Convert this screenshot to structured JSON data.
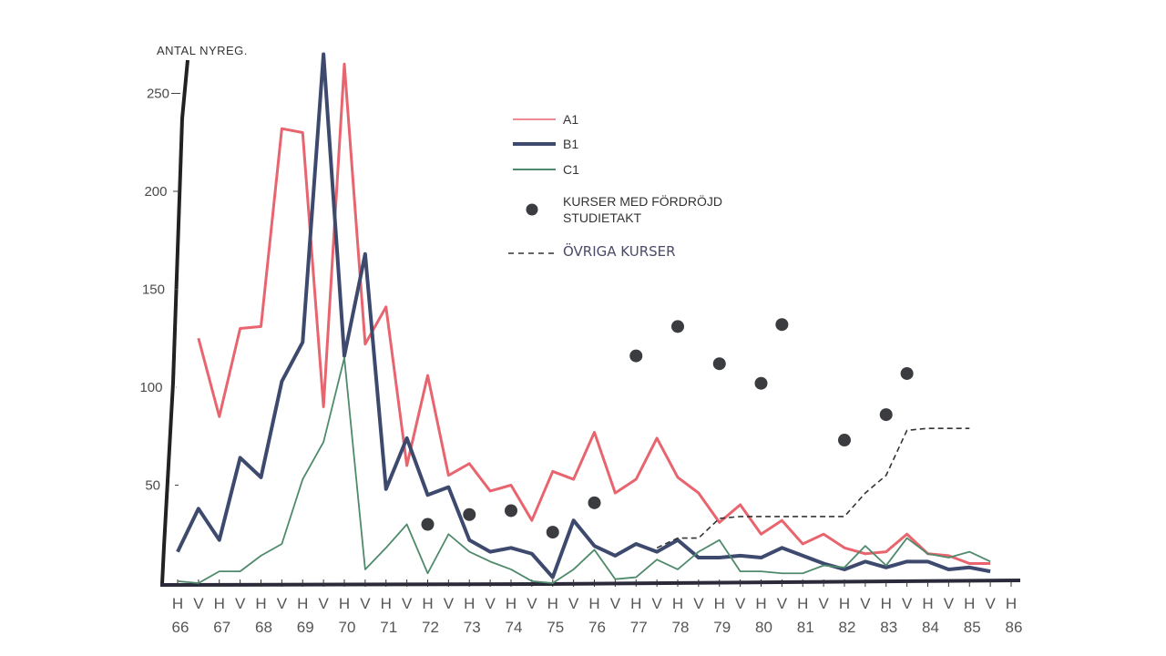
{
  "chart_data": {
    "type": "line",
    "ylabel": "ANTAL NYREG.",
    "xlabel": "",
    "ylim": [
      0,
      270
    ],
    "yticks": [
      50,
      100,
      150,
      200,
      250
    ],
    "semesters": [
      "H",
      "V",
      "H",
      "V",
      "H",
      "V",
      "H",
      "V",
      "H",
      "V",
      "H",
      "V",
      "H",
      "V",
      "H",
      "V",
      "H",
      "V",
      "H",
      "V",
      "H",
      "V",
      "H",
      "V",
      "H",
      "V",
      "H",
      "V",
      "H",
      "V",
      "H",
      "V",
      "H",
      "V",
      "H",
      "V",
      "H",
      "V",
      "H",
      "V",
      "H"
    ],
    "years": [
      "66",
      "67",
      "68",
      "69",
      "70",
      "71",
      "72",
      "73",
      "74",
      "75",
      "76",
      "77",
      "78",
      "79",
      "80",
      "81",
      "82",
      "83",
      "84",
      "85",
      "86"
    ],
    "grid": false,
    "legend_placement": "top-center",
    "legend": {
      "a1": "A1",
      "b1": "B1",
      "c1": "C1",
      "dots_line1": "KURSER MED FÖRDRÖJD",
      "dots_line2": "STUDIETAKT",
      "ovriga": "ÖVRIGA KURSER"
    },
    "series": [
      {
        "name": "A1",
        "color": "#e8646e",
        "points": [
          [
            1,
            125
          ],
          [
            2,
            85
          ],
          [
            3,
            130
          ],
          [
            4,
            131
          ],
          [
            5,
            232
          ],
          [
            6,
            230
          ],
          [
            7,
            90
          ],
          [
            8,
            265
          ],
          [
            9,
            122
          ],
          [
            10,
            141
          ],
          [
            11,
            60
          ],
          [
            12,
            106
          ],
          [
            13,
            55
          ],
          [
            14,
            61
          ],
          [
            15,
            47
          ],
          [
            16,
            50
          ],
          [
            17,
            32
          ],
          [
            18,
            57
          ],
          [
            19,
            53
          ],
          [
            20,
            77
          ],
          [
            21,
            46
          ],
          [
            22,
            53
          ],
          [
            23,
            74
          ],
          [
            24,
            54
          ],
          [
            25,
            46
          ],
          [
            26,
            31
          ],
          [
            27,
            40
          ],
          [
            28,
            25
          ],
          [
            29,
            32
          ],
          [
            30,
            20
          ],
          [
            31,
            25
          ],
          [
            32,
            18
          ],
          [
            33,
            15
          ],
          [
            34,
            16
          ],
          [
            35,
            25
          ],
          [
            36,
            15
          ],
          [
            37,
            14
          ],
          [
            38,
            10
          ],
          [
            39,
            10
          ]
        ]
      },
      {
        "name": "B1",
        "color": "#3d4a6e",
        "points": [
          [
            0,
            16
          ],
          [
            1,
            38
          ],
          [
            2,
            22
          ],
          [
            3,
            64
          ],
          [
            4,
            54
          ],
          [
            5,
            103
          ],
          [
            6,
            123
          ],
          [
            7,
            270
          ],
          [
            8,
            116
          ],
          [
            9,
            168
          ],
          [
            10,
            48
          ],
          [
            11,
            74
          ],
          [
            12,
            45
          ],
          [
            13,
            49
          ],
          [
            14,
            22
          ],
          [
            15,
            16
          ],
          [
            16,
            18
          ],
          [
            17,
            15
          ],
          [
            18,
            3
          ],
          [
            19,
            32
          ],
          [
            20,
            19
          ],
          [
            21,
            14
          ],
          [
            22,
            20
          ],
          [
            23,
            16
          ],
          [
            24,
            22
          ],
          [
            25,
            13
          ],
          [
            26,
            13
          ],
          [
            27,
            14
          ],
          [
            28,
            13
          ],
          [
            29,
            18
          ],
          [
            30,
            14
          ],
          [
            31,
            10
          ],
          [
            32,
            7
          ],
          [
            33,
            11
          ],
          [
            34,
            8
          ],
          [
            35,
            11
          ],
          [
            36,
            11
          ],
          [
            37,
            7
          ],
          [
            38,
            8
          ],
          [
            39,
            6
          ]
        ]
      },
      {
        "name": "C1",
        "color": "#4f8a6c",
        "points": [
          [
            0,
            1
          ],
          [
            1,
            0
          ],
          [
            2,
            6
          ],
          [
            3,
            6
          ],
          [
            4,
            14
          ],
          [
            5,
            20
          ],
          [
            6,
            53
          ],
          [
            7,
            72
          ],
          [
            8,
            115
          ],
          [
            9,
            7
          ],
          [
            10,
            18
          ],
          [
            11,
            30
          ],
          [
            12,
            5
          ],
          [
            13,
            25
          ],
          [
            14,
            16
          ],
          [
            15,
            11
          ],
          [
            16,
            7
          ],
          [
            17,
            1
          ],
          [
            18,
            0
          ],
          [
            19,
            7
          ],
          [
            20,
            17
          ],
          [
            21,
            2
          ],
          [
            22,
            3
          ],
          [
            23,
            12
          ],
          [
            24,
            7
          ],
          [
            25,
            16
          ],
          [
            26,
            22
          ],
          [
            27,
            6
          ],
          [
            28,
            6
          ],
          [
            29,
            5
          ],
          [
            30,
            5
          ],
          [
            31,
            9
          ],
          [
            32,
            8
          ],
          [
            33,
            19
          ],
          [
            34,
            9
          ],
          [
            35,
            23
          ],
          [
            36,
            15
          ],
          [
            37,
            13
          ],
          [
            38,
            16
          ],
          [
            39,
            11
          ]
        ]
      },
      {
        "name": "ÖVRIGA KURSER",
        "color": "#333333",
        "dashed": true,
        "points": [
          [
            23,
            18
          ],
          [
            24,
            23
          ],
          [
            25,
            23
          ],
          [
            26,
            33
          ],
          [
            27,
            34
          ],
          [
            28,
            34
          ],
          [
            29,
            34
          ],
          [
            30,
            34
          ],
          [
            31,
            34
          ],
          [
            32,
            34
          ],
          [
            33,
            46
          ],
          [
            34,
            55
          ],
          [
            35,
            78
          ],
          [
            36,
            79
          ],
          [
            37,
            79
          ],
          [
            38,
            79
          ]
        ]
      },
      {
        "name": "KURSER MED FÖRDRÖJD STUDIETAKT",
        "color": "#3a3c40",
        "markers_only": true,
        "points": [
          [
            12,
            30
          ],
          [
            14,
            35
          ],
          [
            16,
            37
          ],
          [
            18,
            26
          ],
          [
            20,
            41
          ],
          [
            22,
            116
          ],
          [
            24,
            131
          ],
          [
            26,
            112
          ],
          [
            28,
            102
          ],
          [
            29,
            132
          ],
          [
            32,
            73
          ],
          [
            34,
            86
          ],
          [
            35,
            107
          ]
        ]
      }
    ]
  }
}
